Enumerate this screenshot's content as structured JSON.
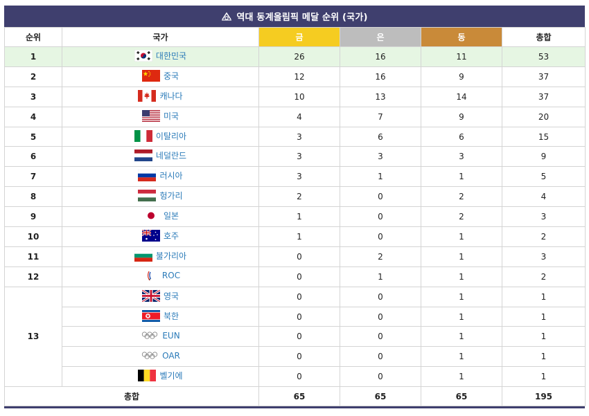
{
  "title": "역대 동계올림픽 메달 순위 (국가)",
  "headers": {
    "rank": "순위",
    "country": "국가",
    "gold": "금",
    "silver": "은",
    "bronze": "동",
    "total": "총합"
  },
  "colors": {
    "title_bg": "#3f3f6e",
    "gold": "#f5cc21",
    "silver": "#bdbdbd",
    "bronze": "#c98a39",
    "highlight_row": "#e6f6e3",
    "link": "#2a7ab8"
  },
  "rows": [
    {
      "rank": "1",
      "country": "대한민국",
      "flag": "korea-flag-icon",
      "gold": "26",
      "silver": "16",
      "bronze": "11",
      "total": "53"
    },
    {
      "rank": "2",
      "country": "중국",
      "flag": "china-flag-icon",
      "gold": "12",
      "silver": "16",
      "bronze": "9",
      "total": "37"
    },
    {
      "rank": "3",
      "country": "캐나다",
      "flag": "canada-flag-icon",
      "gold": "10",
      "silver": "13",
      "bronze": "14",
      "total": "37"
    },
    {
      "rank": "4",
      "country": "미국",
      "flag": "usa-flag-icon",
      "gold": "4",
      "silver": "7",
      "bronze": "9",
      "total": "20"
    },
    {
      "rank": "5",
      "country": "이탈리아",
      "flag": "italy-flag-icon",
      "gold": "3",
      "silver": "6",
      "bronze": "6",
      "total": "15"
    },
    {
      "rank": "6",
      "country": "네덜란드",
      "flag": "netherlands-flag-icon",
      "gold": "3",
      "silver": "3",
      "bronze": "3",
      "total": "9"
    },
    {
      "rank": "7",
      "country": "러시아",
      "flag": "russia-flag-icon",
      "gold": "3",
      "silver": "1",
      "bronze": "1",
      "total": "5"
    },
    {
      "rank": "8",
      "country": "헝가리",
      "flag": "hungary-flag-icon",
      "gold": "2",
      "silver": "0",
      "bronze": "2",
      "total": "4"
    },
    {
      "rank": "9",
      "country": "일본",
      "flag": "japan-flag-icon",
      "gold": "1",
      "silver": "0",
      "bronze": "2",
      "total": "3"
    },
    {
      "rank": "10",
      "country": "호주",
      "flag": "australia-flag-icon",
      "gold": "1",
      "silver": "0",
      "bronze": "1",
      "total": "2"
    },
    {
      "rank": "11",
      "country": "불가리아",
      "flag": "bulgaria-flag-icon",
      "gold": "0",
      "silver": "2",
      "bronze": "1",
      "total": "3"
    },
    {
      "rank": "12",
      "country": "ROC",
      "flag": "roc-emblem-icon",
      "gold": "0",
      "silver": "1",
      "bronze": "1",
      "total": "2"
    },
    {
      "rank": "13",
      "country": "영국",
      "flag": "uk-flag-icon",
      "gold": "0",
      "silver": "0",
      "bronze": "1",
      "total": "1"
    },
    {
      "rank": "",
      "country": "북한",
      "flag": "north-korea-flag-icon",
      "gold": "0",
      "silver": "0",
      "bronze": "1",
      "total": "1"
    },
    {
      "rank": "",
      "country": "EUN",
      "flag": "olympic-rings-icon",
      "gold": "0",
      "silver": "0",
      "bronze": "1",
      "total": "1"
    },
    {
      "rank": "",
      "country": "OAR",
      "flag": "olympic-rings-icon",
      "gold": "0",
      "silver": "0",
      "bronze": "1",
      "total": "1"
    },
    {
      "rank": "",
      "country": "벨기에",
      "flag": "belgium-flag-icon",
      "gold": "0",
      "silver": "0",
      "bronze": "1",
      "total": "1"
    }
  ],
  "totals": {
    "label": "총합",
    "gold": "65",
    "silver": "65",
    "bronze": "65",
    "total": "195"
  }
}
